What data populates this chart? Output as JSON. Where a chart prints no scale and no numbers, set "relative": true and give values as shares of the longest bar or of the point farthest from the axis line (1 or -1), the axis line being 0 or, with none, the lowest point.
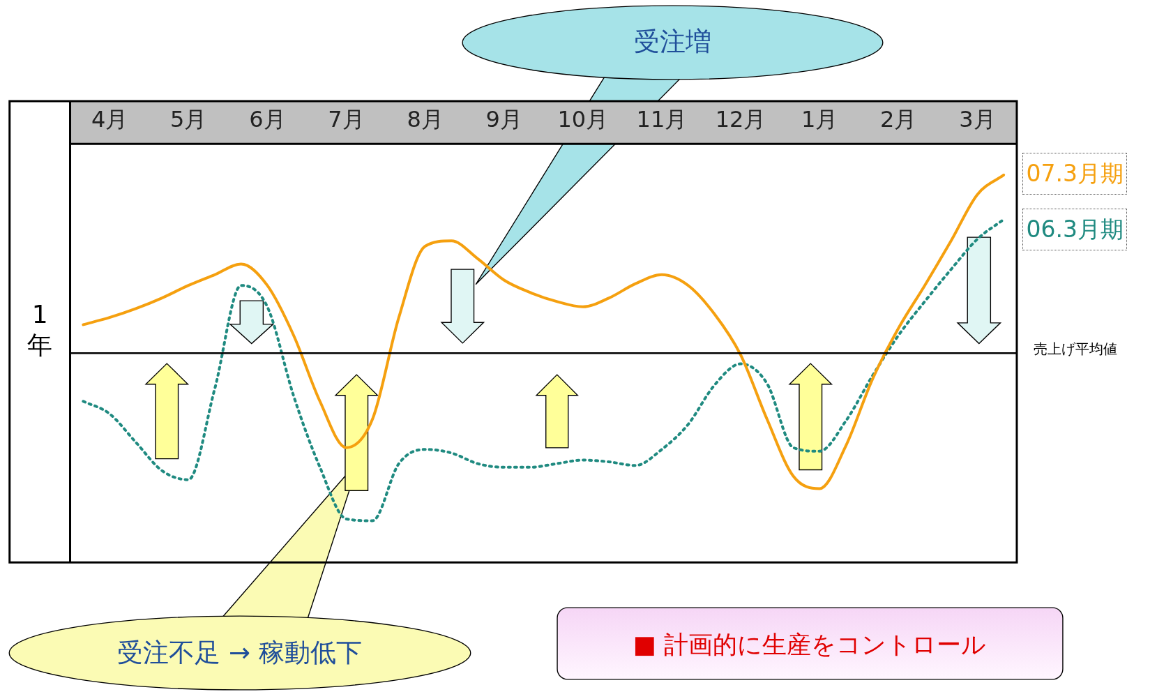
{
  "chart_data": {
    "type": "line",
    "relative": true,
    "ylabel": "1年",
    "categories": [
      null,
      "4月",
      null,
      null,
      "5月",
      null,
      null,
      "6月",
      null,
      null,
      "7月",
      null,
      null,
      "8月",
      null,
      null,
      "9月",
      null,
      null,
      "10月",
      null,
      null,
      "11月",
      null,
      null,
      "12月",
      null,
      null,
      "1月",
      null,
      null,
      "2月",
      null,
      null,
      "3月",
      null
    ],
    "series": [
      {
        "name": "07.3月期",
        "color": "#f5a00f",
        "line_style": "solid",
        "values": [
          0.16,
          0.2,
          0.25,
          0.31,
          0.38,
          0.44,
          0.5,
          0.38,
          0.1,
          -0.27,
          -0.53,
          -0.37,
          0.2,
          0.6,
          0.63,
          0.53,
          0.41,
          0.34,
          0.29,
          0.26,
          0.31,
          0.39,
          0.44,
          0.38,
          0.22,
          -0.01,
          -0.37,
          -0.69,
          -0.76,
          -0.52,
          -0.15,
          0.14,
          0.38,
          0.63,
          0.89,
          1
        ]
      },
      {
        "name": "06.3月期",
        "color": "#1f8a80",
        "line_style": "dotted",
        "values": [
          -0.27,
          -0.34,
          -0.5,
          -0.66,
          -0.71,
          -0.2,
          0.38,
          0.26,
          -0.24,
          -0.64,
          -0.93,
          -0.94,
          -0.62,
          -0.54,
          -0.56,
          -0.62,
          -0.64,
          -0.64,
          -0.62,
          -0.6,
          -0.61,
          -0.63,
          -0.54,
          -0.4,
          -0.18,
          -0.06,
          -0.17,
          -0.53,
          -0.55,
          -0.38,
          -0.13,
          0.1,
          0.29,
          0.47,
          0.64,
          0.75
        ]
      }
    ],
    "ref_lines": [
      {
        "axis": "y",
        "value": 0,
        "label": "売上げ平均値",
        "color": "#000000"
      }
    ],
    "annotations": [
      "受注増",
      "受注不足 → 稼動低下",
      "■ 計画的に生産をコントロール"
    ]
  }
}
